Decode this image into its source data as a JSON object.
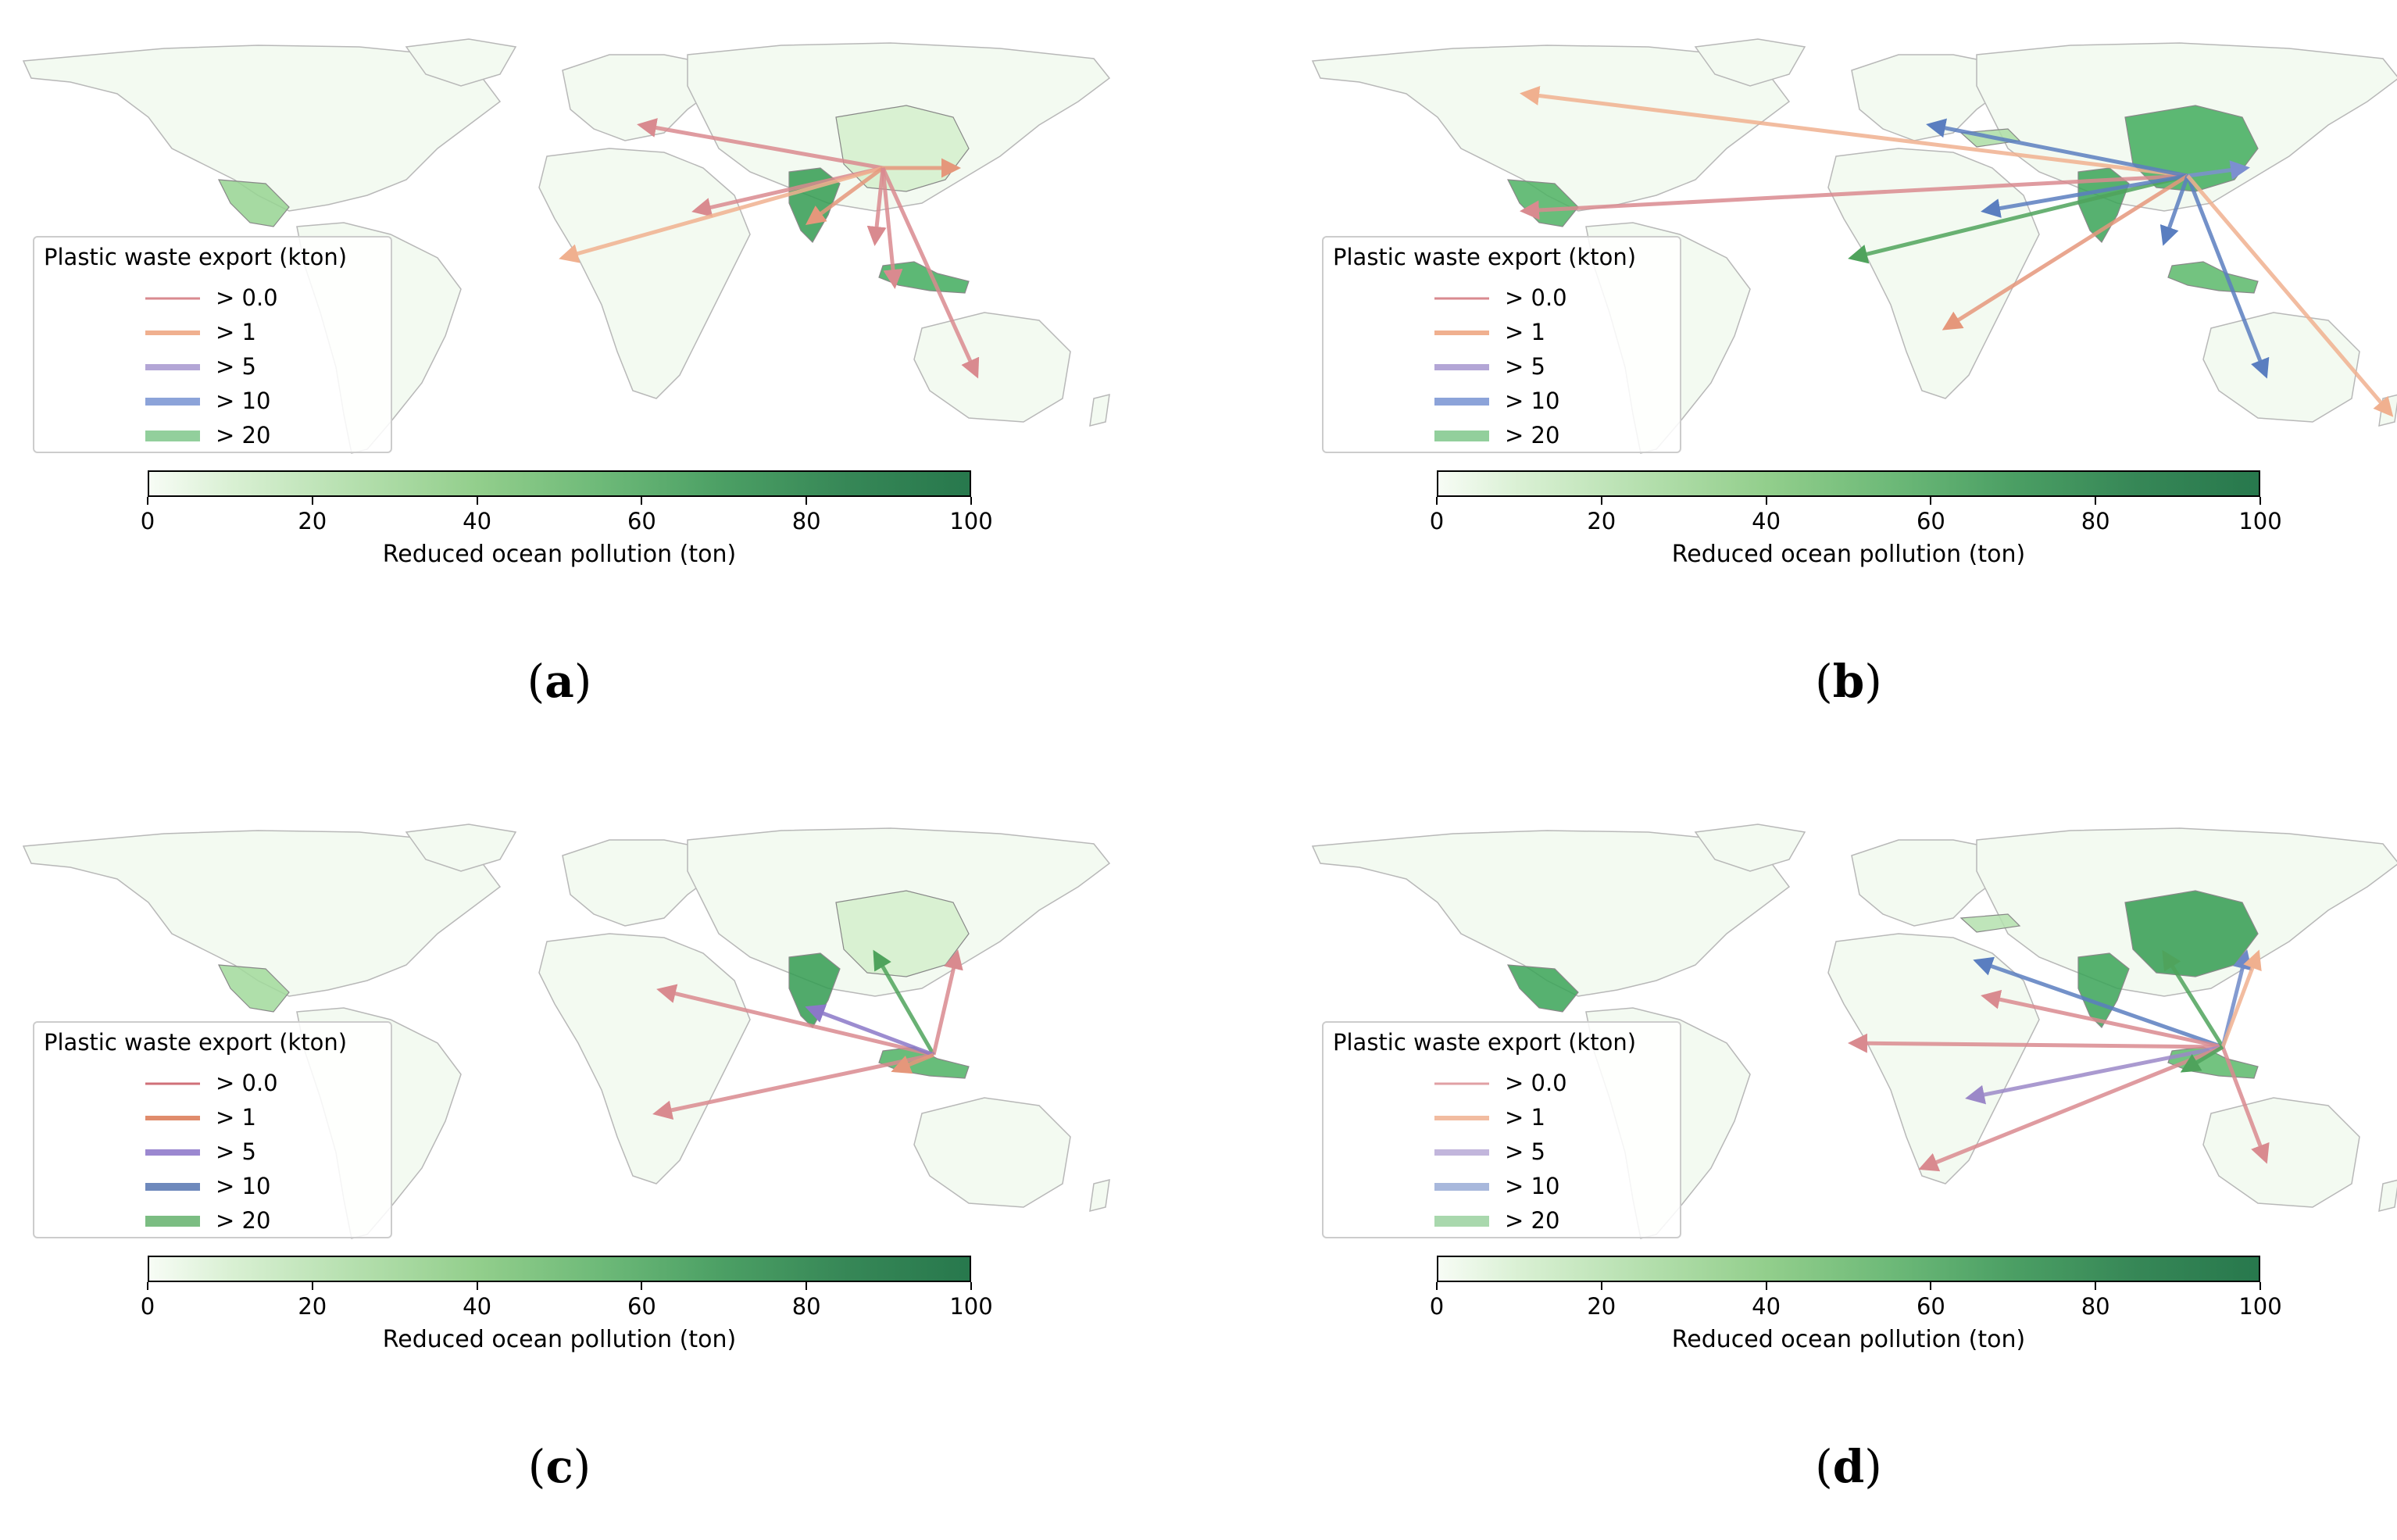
{
  "legend": {
    "title": "Plastic waste export (kton)",
    "entries": [
      "> 0.0",
      "> 1",
      "> 5",
      "> 10",
      "> 20"
    ]
  },
  "colorbar": {
    "label": "Reduced ocean pollution (ton)",
    "ticks": [
      "0",
      "20",
      "40",
      "60",
      "80",
      "100"
    ],
    "range": [
      0,
      100
    ],
    "colormap": "Greens"
  },
  "panels": [
    {
      "label": "a",
      "legend_colors": [
        "#d98a8f",
        "#f0b08f",
        "#b3a6d6",
        "#8ca3d9",
        "#92cf9c"
      ],
      "highlight": [
        {
          "region": "India",
          "value": 90
        },
        {
          "region": "Indonesia",
          "value": 80
        },
        {
          "region": "Mexico",
          "value": 45
        },
        {
          "region": "China",
          "value": 15
        }
      ],
      "flows": [
        {
          "to": "Europe",
          "color": "#d98a8f"
        },
        {
          "to": "Japan",
          "color": "#e5977b"
        },
        {
          "to": "Arabia",
          "color": "#d98a8f"
        },
        {
          "to": "West Africa",
          "color": "#f0b08f"
        },
        {
          "to": "India",
          "color": "#e5977b"
        },
        {
          "to": "SE Asia",
          "color": "#d98a8f"
        },
        {
          "to": "Indonesia",
          "color": "#d98a8f"
        },
        {
          "to": "Australia",
          "color": "#d98a8f"
        }
      ]
    },
    {
      "label": "b",
      "legend_colors": [
        "#d98a8f",
        "#f0b08f",
        "#b3a6d6",
        "#8ca3d9",
        "#92cf9c"
      ],
      "highlight": [
        {
          "region": "India",
          "value": 85
        },
        {
          "region": "China",
          "value": 80
        },
        {
          "region": "Indonesia",
          "value": 70
        },
        {
          "region": "Mexico",
          "value": 75
        },
        {
          "region": "Turkey",
          "value": 35
        }
      ],
      "flows": [
        {
          "to": "Canada",
          "color": "#f0b08f"
        },
        {
          "to": "Mexico",
          "color": "#d98a8f"
        },
        {
          "to": "Europe",
          "color": "#5a7ec0"
        },
        {
          "to": "West Africa",
          "color": "#4fa35c"
        },
        {
          "to": "Japan",
          "color": "#7c8fd0"
        },
        {
          "to": "Arabia",
          "color": "#5a7ec0"
        },
        {
          "to": "East Africa",
          "color": "#e5977b"
        },
        {
          "to": "SE Asia",
          "color": "#5a7ec0"
        },
        {
          "to": "Australia",
          "color": "#5a7ec0"
        },
        {
          "to": "New Zealand",
          "color": "#f0b08f"
        }
      ]
    },
    {
      "label": "c",
      "legend_colors": [
        "#d07078",
        "#e08c6c",
        "#9b88d0",
        "#6e89bc",
        "#7bbd82"
      ],
      "highlight": [
        {
          "region": "India",
          "value": 90
        },
        {
          "region": "Indonesia",
          "value": 75
        },
        {
          "region": "Mexico",
          "value": 40
        },
        {
          "region": "China",
          "value": 15
        }
      ],
      "flows": [
        {
          "to": "China",
          "color": "#4fa35c"
        },
        {
          "to": "Japan",
          "color": "#d98a8f"
        },
        {
          "to": "North Africa",
          "color": "#d98a8f"
        },
        {
          "to": "East Africa",
          "color": "#d98a8f"
        },
        {
          "to": "India",
          "color": "#8b78c8"
        },
        {
          "to": "Indonesia",
          "color": "#e5977b"
        }
      ]
    },
    {
      "label": "d",
      "legend_colors": [
        "#e0a0a4",
        "#f2bca0",
        "#c2b6dc",
        "#a8b8dc",
        "#a9d8ad"
      ],
      "highlight": [
        {
          "region": "China",
          "value": 90
        },
        {
          "region": "India",
          "value": 85
        },
        {
          "region": "Mexico",
          "value": 85
        },
        {
          "region": "Indonesia",
          "value": 70
        },
        {
          "region": "Turkey",
          "value": 30
        }
      ],
      "flows": [
        {
          "to": "Turkey",
          "color": "#5a7ec0"
        },
        {
          "to": "Arabia",
          "color": "#d98a8f"
        },
        {
          "to": "West Africa",
          "color": "#d98a8f"
        },
        {
          "to": "Central Africa",
          "color": "#9b88c8"
        },
        {
          "to": "Southern Africa",
          "color": "#d98a8f"
        },
        {
          "to": "China",
          "color": "#4fa35c"
        },
        {
          "to": "Japan",
          "color": "#6e89c8"
        },
        {
          "to": "Korea",
          "color": "#f0b08f"
        },
        {
          "to": "Australia",
          "color": "#d98a8f"
        },
        {
          "to": "Indonesia",
          "color": "#4fa35c"
        }
      ]
    }
  ]
}
